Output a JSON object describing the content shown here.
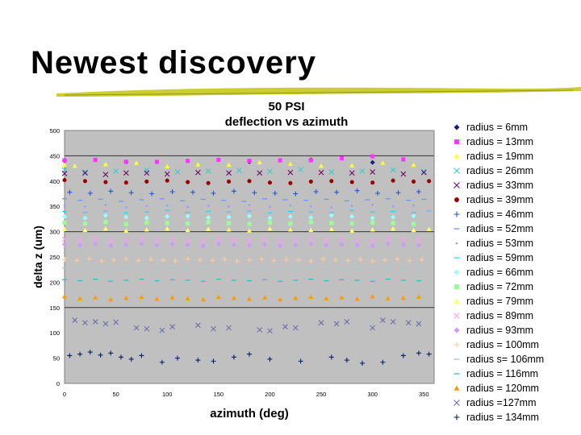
{
  "slide": {
    "title": "Newest discovery"
  },
  "chart_data": {
    "type": "scatter",
    "title": "50 PSI",
    "subtitle": "deflection vs azimuth",
    "xlabel": "azimuth (deg)",
    "ylabel": "delta z (um)",
    "xlim": [
      0,
      360
    ],
    "ylim": [
      0,
      500
    ],
    "xticks": [
      0,
      50,
      100,
      150,
      200,
      250,
      300,
      350
    ],
    "yticks": [
      0,
      50,
      100,
      150,
      200,
      250,
      300,
      350,
      400,
      450,
      500
    ],
    "grid": "horizontal",
    "background": "#c0c0c0",
    "legend_position": "right",
    "series": [
      {
        "name": "radius = 6mm",
        "marker": "diamond",
        "color": "#1a1a7a",
        "x": [
          0,
          60,
          180,
          240,
          300
        ],
        "y": [
          440,
          438,
          438,
          442,
          437
        ]
      },
      {
        "name": "radius = 13mm",
        "marker": "square",
        "color": "#ff33ff",
        "x": [
          0,
          30,
          60,
          90,
          120,
          150,
          180,
          210,
          240,
          270,
          300,
          330
        ],
        "y": [
          441,
          442,
          438,
          438,
          440,
          442,
          440,
          441,
          441,
          445,
          449,
          443
        ]
      },
      {
        "name": "radius = 19mm",
        "marker": "triangle",
        "color": "#ffff33",
        "x": [
          0,
          10,
          40,
          70,
          100,
          130,
          160,
          190,
          220,
          250,
          280,
          310,
          340
        ],
        "y": [
          432,
          430,
          433,
          436,
          429,
          433,
          432,
          437,
          434,
          430,
          431,
          436,
          432
        ]
      },
      {
        "name": "radius = 26mm",
        "marker": "x",
        "color": "#33cccc",
        "x": [
          0,
          20,
          50,
          80,
          110,
          140,
          170,
          200,
          230,
          260,
          290,
          320,
          350
        ],
        "y": [
          422,
          418,
          420,
          422,
          418,
          420,
          421,
          419,
          423,
          418,
          420,
          422,
          419
        ]
      },
      {
        "name": "radius = 33mm",
        "marker": "x",
        "color": "#660066",
        "x": [
          0,
          20,
          40,
          60,
          80,
          100,
          130,
          160,
          190,
          220,
          250,
          280,
          300,
          330,
          350
        ],
        "y": [
          415,
          416,
          413,
          416,
          416,
          414,
          417,
          416,
          416,
          417,
          417,
          416,
          418,
          414,
          417
        ]
      },
      {
        "name": "radius = 39mm",
        "marker": "circle",
        "color": "#990000",
        "x": [
          0,
          20,
          40,
          60,
          80,
          100,
          120,
          140,
          160,
          180,
          200,
          220,
          240,
          260,
          280,
          300,
          320,
          340,
          355
        ],
        "y": [
          402,
          400,
          398,
          397,
          399,
          401,
          398,
          396,
          399,
          400,
          397,
          396,
          399,
          400,
          398,
          397,
          401,
          399,
          400
        ]
      },
      {
        "name": "radius = 46mm",
        "marker": "plus",
        "color": "#2255cc",
        "x": [
          5,
          25,
          45,
          65,
          85,
          105,
          125,
          145,
          165,
          185,
          205,
          225,
          245,
          265,
          285,
          305,
          325,
          345
        ],
        "y": [
          378,
          376,
          380,
          377,
          375,
          379,
          378,
          376,
          380,
          377,
          376,
          375,
          379,
          378,
          381,
          376,
          377,
          379
        ]
      },
      {
        "name": "radius = 52mm",
        "marker": "dash",
        "color": "#6699ff",
        "x": [
          0,
          15,
          35,
          55,
          75,
          95,
          115,
          135,
          155,
          175,
          195,
          215,
          235,
          255,
          275,
          295,
          315,
          335,
          350
        ],
        "y": [
          365,
          362,
          364,
          360,
          363,
          365,
          361,
          364,
          362,
          360,
          365,
          363,
          362,
          364,
          361,
          363,
          365,
          362,
          364
        ]
      },
      {
        "name": "radius = 53mm",
        "marker": "dot",
        "color": "#9999ff",
        "x": [
          0,
          20,
          40,
          60,
          80,
          100,
          120,
          140,
          160,
          180,
          200,
          220,
          240,
          260,
          280,
          300,
          320,
          340
        ],
        "y": [
          352,
          350,
          353,
          348,
          351,
          352,
          349,
          351,
          350,
          353,
          349,
          352,
          350,
          348,
          351,
          353,
          350,
          352
        ]
      },
      {
        "name": "radius = 59mm",
        "marker": "dash",
        "color": "#33ccff",
        "x": [
          0,
          20,
          40,
          60,
          80,
          100,
          120,
          140,
          160,
          180,
          200,
          220,
          240,
          260,
          280,
          300,
          320,
          340,
          355
        ],
        "y": [
          340,
          338,
          341,
          337,
          339,
          342,
          338,
          340,
          339,
          341,
          337,
          340,
          339,
          338,
          342,
          339,
          340,
          338,
          341
        ]
      },
      {
        "name": "radius = 66mm",
        "marker": "diamond",
        "color": "#99ffff",
        "x": [
          0,
          20,
          40,
          60,
          80,
          100,
          120,
          140,
          160,
          180,
          200,
          220,
          240,
          260,
          280,
          300,
          320,
          340
        ],
        "y": [
          330,
          327,
          332,
          329,
          327,
          330,
          331,
          328,
          329,
          331,
          327,
          330,
          328,
          332,
          330,
          327,
          329,
          331
        ]
      },
      {
        "name": "radius = 72mm",
        "marker": "square",
        "color": "#99ff99",
        "x": [
          0,
          20,
          40,
          60,
          80,
          100,
          120,
          140,
          160,
          180,
          200,
          220,
          240,
          260,
          280,
          300,
          320,
          340
        ],
        "y": [
          318,
          316,
          319,
          315,
          318,
          317,
          316,
          319,
          317,
          315,
          318,
          316,
          319,
          317,
          316,
          318,
          317,
          315
        ]
      },
      {
        "name": "radius = 79mm",
        "marker": "triangle",
        "color": "#ffff66",
        "x": [
          0,
          20,
          40,
          60,
          80,
          100,
          120,
          140,
          160,
          180,
          200,
          220,
          240,
          260,
          280,
          300,
          320,
          340,
          355
        ],
        "y": [
          305,
          303,
          306,
          302,
          304,
          306,
          303,
          305,
          304,
          302,
          306,
          304,
          303,
          305,
          302,
          304,
          306,
          303,
          305
        ]
      },
      {
        "name": "radius = 89mm",
        "marker": "x",
        "color": "#ff99ff",
        "x": [
          0,
          15,
          30,
          45,
          60,
          75,
          90,
          105,
          120,
          135,
          150,
          165,
          180,
          195,
          210,
          225,
          240,
          255,
          270,
          285,
          300,
          315,
          330,
          345
        ],
        "y": [
          285,
          283,
          286,
          282,
          284,
          286,
          283,
          285,
          284,
          282,
          286,
          284,
          283,
          285,
          282,
          284,
          286,
          283,
          285,
          284,
          282,
          286,
          284,
          283
        ]
      },
      {
        "name": "radius = 93mm",
        "marker": "diamond",
        "color": "#cc99ff",
        "x": [
          0,
          15,
          30,
          45,
          60,
          75,
          90,
          105,
          120,
          135,
          150,
          165,
          180,
          195,
          210,
          225,
          240,
          255,
          270,
          285,
          300,
          315,
          330,
          345
        ],
        "y": [
          275,
          273,
          276,
          272,
          274,
          276,
          273,
          275,
          274,
          272,
          276,
          274,
          273,
          275,
          272,
          274,
          276,
          273,
          275,
          274,
          272,
          276,
          274,
          273
        ]
      },
      {
        "name": "radius = 100mm",
        "marker": "plus",
        "color": "#ffcc99",
        "x": [
          0,
          12,
          24,
          36,
          48,
          60,
          72,
          84,
          96,
          108,
          120,
          132,
          144,
          156,
          168,
          180,
          192,
          204,
          216,
          228,
          240,
          252,
          264,
          276,
          288,
          300,
          312,
          324,
          336,
          348
        ],
        "y": [
          245,
          243,
          246,
          242,
          244,
          246,
          243,
          245,
          244,
          242,
          246,
          244,
          243,
          245,
          242,
          244,
          246,
          243,
          245,
          244,
          242,
          246,
          244,
          243,
          245,
          242,
          244,
          246,
          243,
          245
        ]
      },
      {
        "name": "radius s= 106mm",
        "marker": "dash",
        "color": "#99cccc",
        "x": [
          0,
          15,
          30,
          45,
          60,
          75,
          90,
          105,
          120,
          135,
          150,
          165,
          180,
          195,
          210,
          225,
          240,
          255,
          270,
          285,
          300,
          315,
          330,
          345
        ],
        "y": [
          228,
          226,
          229,
          225,
          227,
          229,
          226,
          228,
          227,
          225,
          229,
          227,
          226,
          228,
          225,
          227,
          229,
          226,
          228,
          227,
          225,
          229,
          227,
          226
        ]
      },
      {
        "name": "radius = 116mm",
        "marker": "dash",
        "color": "#33bbcc",
        "x": [
          0,
          15,
          30,
          45,
          60,
          75,
          90,
          105,
          120,
          135,
          150,
          165,
          180,
          195,
          210,
          225,
          240,
          255,
          270,
          285,
          300,
          315,
          330,
          345
        ],
        "y": [
          205,
          203,
          206,
          202,
          204,
          206,
          203,
          205,
          204,
          202,
          206,
          204,
          203,
          205,
          202,
          204,
          206,
          203,
          205,
          204,
          202,
          206,
          204,
          203
        ]
      },
      {
        "name": "radius = 120mm",
        "marker": "triangle",
        "color": "#ff9900",
        "x": [
          0,
          15,
          30,
          45,
          60,
          75,
          90,
          105,
          120,
          135,
          150,
          165,
          180,
          195,
          210,
          225,
          240,
          255,
          270,
          285,
          300,
          315,
          330,
          345
        ],
        "y": [
          172,
          168,
          170,
          166,
          169,
          171,
          167,
          170,
          168,
          166,
          171,
          169,
          167,
          170,
          166,
          169,
          171,
          168,
          170,
          167,
          172,
          168,
          169,
          171
        ]
      },
      {
        "name": "radius =127mm",
        "marker": "x",
        "color": "#6666aa",
        "x": [
          10,
          20,
          30,
          40,
          50,
          70,
          80,
          95,
          105,
          130,
          145,
          160,
          190,
          200,
          215,
          225,
          250,
          265,
          275,
          300,
          310,
          320,
          335,
          345
        ],
        "y": [
          125,
          120,
          122,
          118,
          121,
          110,
          108,
          105,
          112,
          115,
          108,
          110,
          106,
          104,
          112,
          110,
          120,
          118,
          122,
          110,
          125,
          122,
          120,
          118
        ]
      },
      {
        "name": "radius = 134mm",
        "marker": "plus",
        "color": "#002266",
        "x": [
          5,
          15,
          25,
          35,
          45,
          55,
          65,
          75,
          95,
          110,
          130,
          145,
          165,
          180,
          200,
          230,
          260,
          275,
          290,
          310,
          330,
          345,
          355
        ],
        "y": [
          55,
          58,
          62,
          56,
          60,
          52,
          48,
          55,
          42,
          50,
          46,
          44,
          52,
          58,
          48,
          44,
          52,
          46,
          40,
          42,
          55,
          60,
          58
        ]
      }
    ]
  }
}
